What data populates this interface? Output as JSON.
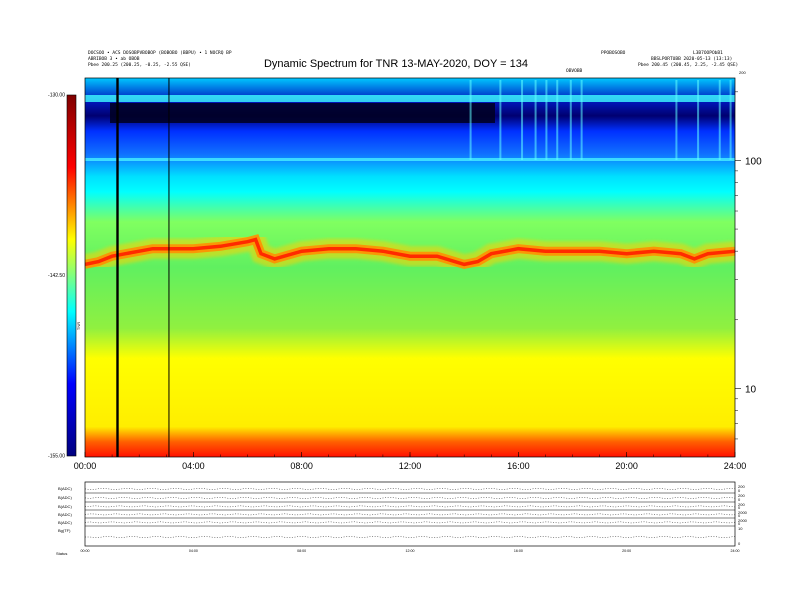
{
  "header": {
    "left_line1": "DOCSOO • ACS DOSOBPVBOBOP (BOBOBO (BBPU) • 1 NOCRQ BP",
    "left_line2": "ABRIBOB 3 • ab OBOB",
    "left_line3": "Pbee      200.25 (200.25, -0.25, -2.55 QSE)",
    "right_line1a": "PPOBOSOBO",
    "right_line1b": "L3B7OOPObB1",
    "right_line2": "BBSLPORTUBB  2020-05-13 (13:13)",
    "right_line3": "Pbee      200.45 (200.45, 2.25, -2.45 QSE)",
    "small_mark": "OBVOBB"
  },
  "chart_data": {
    "type": "heatmap",
    "title": "Dynamic Spectrum for TNR 13-MAY-2020, DOY = 134",
    "x_tick_labels": [
      "00:00",
      "04:00",
      "08:00",
      "12:00",
      "16:00",
      "20:00",
      "24:00"
    ],
    "xlim_hours": [
      0,
      24
    ],
    "y_axis_scale": "log",
    "y_tick_labels": [
      "100",
      "10"
    ],
    "y_ticks": [
      100,
      10
    ],
    "ylim": [
      5,
      230
    ],
    "y_top_label": "200",
    "colorbar": {
      "labels": [
        "-130.00",
        "-142.50",
        "-155.00"
      ],
      "values": [
        -130,
        -142.5,
        -155
      ],
      "range": [
        -155,
        -130
      ],
      "side_label": "TNR",
      "colormap": [
        "#00007f",
        "#0000ff",
        "#00ffff",
        "#ffff00",
        "#ff0000",
        "#7f0000"
      ]
    },
    "gap_lines_hours": [
      1.2,
      3.1
    ],
    "emission_band": {
      "hours": [
        0,
        0.5,
        1,
        1.5,
        2,
        2.5,
        3,
        4,
        5,
        6,
        6.3,
        6.5,
        7,
        8,
        9,
        10,
        11,
        12,
        13,
        14,
        14.5,
        15,
        16,
        17,
        18,
        19,
        20,
        21,
        22,
        22.5,
        23,
        24
      ],
      "freq": [
        35,
        36,
        38,
        39,
        40,
        41,
        41,
        41,
        42,
        44,
        45,
        39,
        37,
        40,
        41,
        41,
        40,
        38,
        38,
        35,
        36,
        39,
        41,
        40,
        40,
        40,
        39,
        40,
        39,
        37,
        39,
        40
      ]
    }
  },
  "panels": {
    "rows": [
      "B(ADC)",
      "B(ADC)",
      "B(ADC)",
      "B(ADC)",
      "B(ADC)",
      "Bg(TF)"
    ],
    "right_ticks": [
      [
        "200",
        "0"
      ],
      [
        "200",
        "0"
      ],
      [
        "200",
        "0"
      ],
      [
        "2000",
        "0"
      ],
      [
        "2000",
        "0"
      ],
      [
        "10",
        "0"
      ]
    ],
    "x_tick_labels": [
      "00:00",
      "04:00",
      "08:00",
      "12:00",
      "16:00",
      "20:00",
      "24:00"
    ],
    "footer_label": "Status"
  }
}
